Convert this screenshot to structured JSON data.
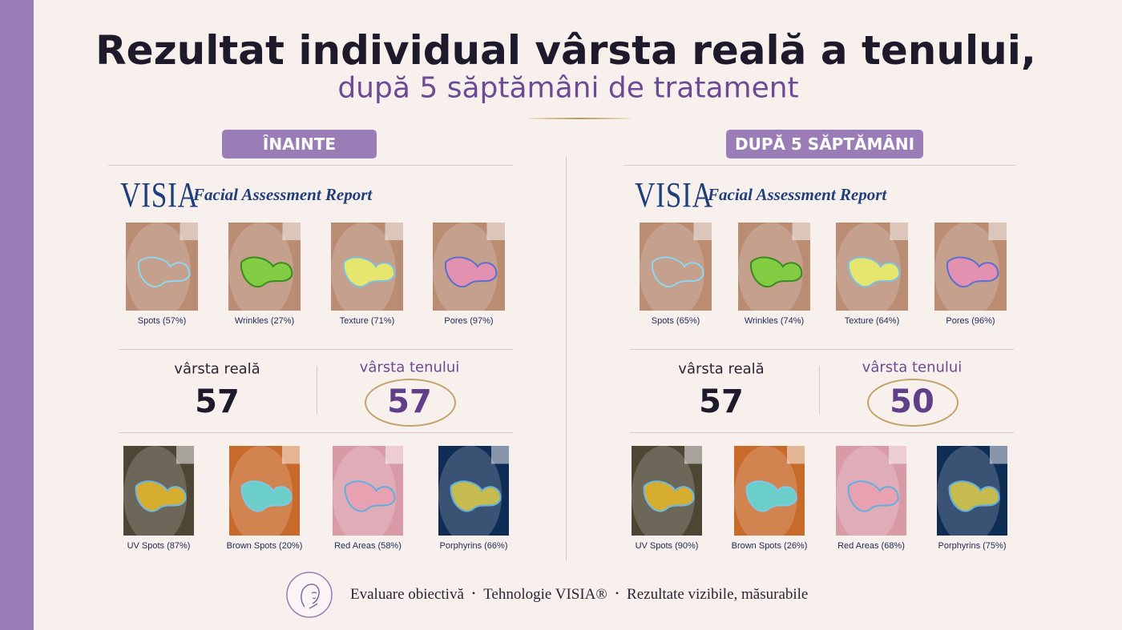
{
  "header": {
    "title": "Rezultat individual vârsta reală a tenului,",
    "subtitle": "după 5 săptămâni de tratament"
  },
  "panels": [
    {
      "label": "ÎNAINTE",
      "brand": "VISIA",
      "report": "Facial Assessment Report",
      "top_captions": [
        "Spots (57%)",
        "Wrinkles (27%)",
        "Texture (71%)",
        "Pores (97%)"
      ],
      "real_age_label": "vârsta reală",
      "real_age": 57,
      "skin_age_label": "vârsta tenului",
      "skin_age": 57,
      "bottom_captions": [
        "UV Spots (87%)",
        "Brown Spots (20%)",
        "Red Areas (58%)",
        "Porphyrins (66%)"
      ]
    },
    {
      "label": "DUPĂ 5 SĂPTĂMÂNI",
      "brand": "VISIA",
      "report": "Facial Assessment Report",
      "top_captions": [
        "Spots (65%)",
        "Wrinkles (74%)",
        "Texture (64%)",
        "Pores (96%)"
      ],
      "real_age_label": "vârsta reală",
      "real_age": 57,
      "skin_age_label": "vârsta tenului",
      "skin_age": 50,
      "bottom_captions": [
        "UV Spots (90%)",
        "Brown Spots (26%)",
        "Red Areas (68%)",
        "Porphyrins (75%)"
      ]
    }
  ],
  "footer": {
    "items": [
      "Evaluare obiectivă",
      "Tehnologie VISIA®",
      "Rezultate vizibile, măsurabile"
    ],
    "separator": "•"
  }
}
